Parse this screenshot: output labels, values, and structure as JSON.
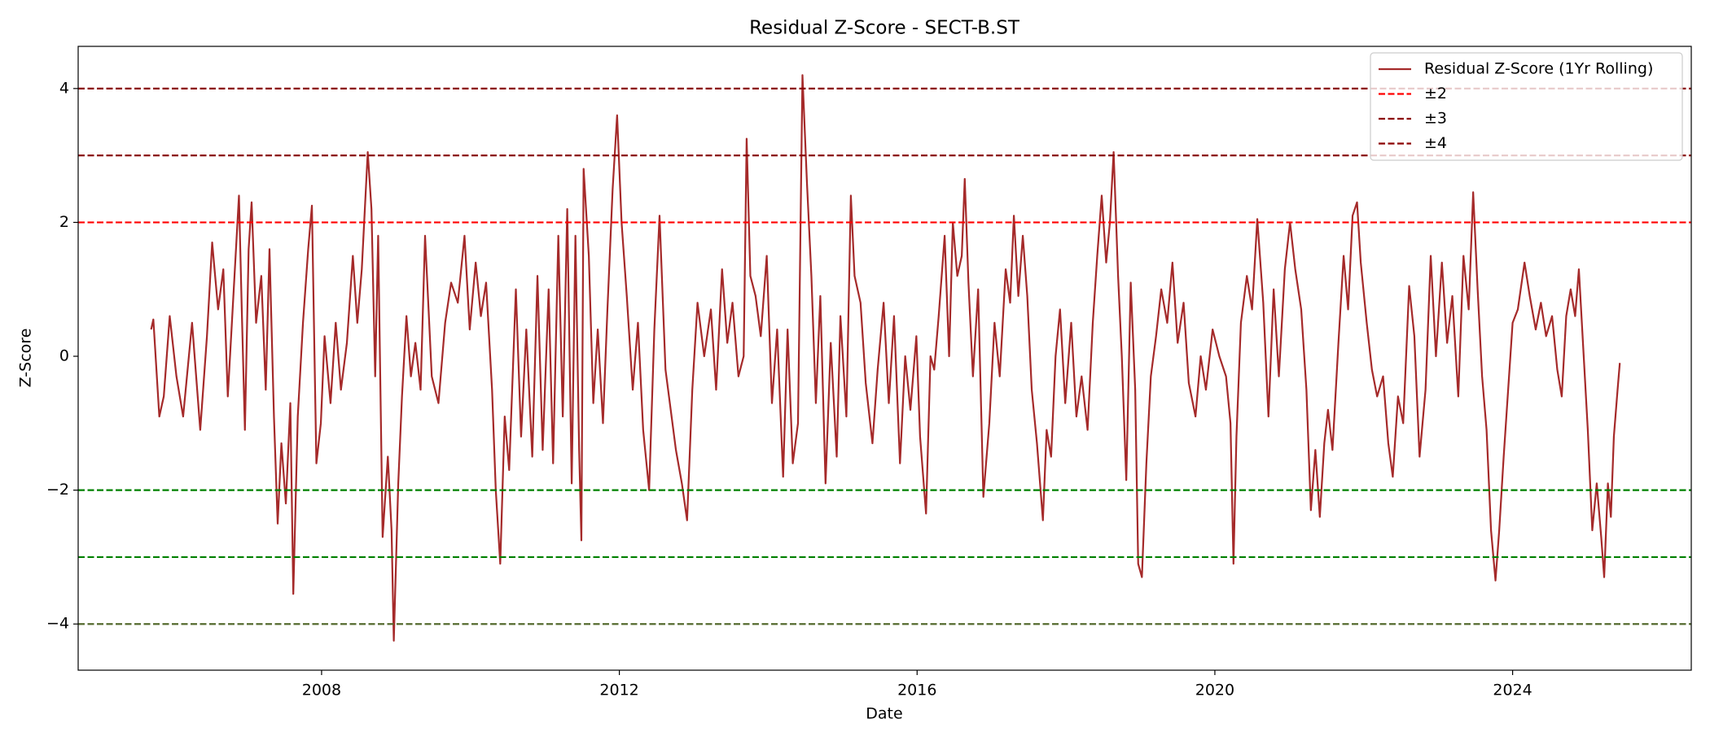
{
  "chart_data": {
    "type": "line",
    "title": "Residual Z-Score - SECT-B.ST",
    "x_label": "Date",
    "y_label": "Z-Score",
    "xlim": [
      2004.73,
      2026.4
    ],
    "xticks": [
      2008,
      2012,
      2016,
      2020,
      2024
    ],
    "ylim": [
      -4.69,
      4.63
    ],
    "yticks": [
      {
        "value": -4,
        "label": "−4"
      },
      {
        "value": -2,
        "label": "−2"
      },
      0,
      2,
      4
    ],
    "legend": "upper right",
    "series": [
      {
        "name": "Residual Z-Score (1Yr Rolling)",
        "color": "#a52a2a",
        "x": [
          2005.71,
          2005.74,
          2005.82,
          2005.88,
          2005.96,
          2006.05,
          2006.14,
          2006.26,
          2006.37,
          2006.46,
          2006.53,
          2006.61,
          2006.68,
          2006.74,
          2006.89,
          2006.93,
          2006.97,
          2007.02,
          2007.06,
          2007.12,
          2007.19,
          2007.25,
          2007.3,
          2007.36,
          2007.41,
          2007.46,
          2007.52,
          2007.58,
          2007.62,
          2007.68,
          2007.75,
          2007.82,
          2007.87,
          2007.93,
          2007.99,
          2008.04,
          2008.12,
          2008.19,
          2008.26,
          2008.34,
          2008.42,
          2008.48,
          2008.54,
          2008.62,
          2008.67,
          2008.72,
          2008.76,
          2008.82,
          2008.89,
          2008.94,
          2008.97,
          2009.03,
          2009.08,
          2009.14,
          2009.2,
          2009.26,
          2009.33,
          2009.39,
          2009.48,
          2009.57,
          2009.66,
          2009.74,
          2009.83,
          2009.92,
          2009.99,
          2010.07,
          2010.14,
          2010.21,
          2010.29,
          2010.34,
          2010.4,
          2010.46,
          2010.52,
          2010.61,
          2010.68,
          2010.75,
          2010.83,
          2010.9,
          2010.97,
          2011.05,
          2011.11,
          2011.18,
          2011.24,
          2011.3,
          2011.36,
          2011.41,
          2011.46,
          2011.49,
          2011.52,
          2011.59,
          2011.65,
          2011.71,
          2011.78,
          2011.84,
          2011.91,
          2011.97,
          2012.03,
          2012.1,
          2012.18,
          2012.25,
          2012.32,
          2012.4,
          2012.47,
          2012.54,
          2012.62,
          2012.69,
          2012.76,
          2012.84,
          2012.91,
          2012.98,
          2013.05,
          2013.14,
          2013.23,
          2013.3,
          2013.38,
          2013.45,
          2013.52,
          2013.6,
          2013.67,
          2013.71,
          2013.76,
          2013.83,
          2013.9,
          2013.98,
          2014.05,
          2014.12,
          2014.2,
          2014.26,
          2014.33,
          2014.4,
          2014.46,
          2014.52,
          2014.58,
          2014.64,
          2014.7,
          2014.77,
          2014.84,
          2014.92,
          2014.97,
          2015.05,
          2015.11,
          2015.16,
          2015.24,
          2015.31,
          2015.4,
          2015.47,
          2015.55,
          2015.62,
          2015.69,
          2015.77,
          2015.84,
          2015.91,
          2015.99,
          2016.04,
          2016.12,
          2016.18,
          2016.23,
          2016.29,
          2016.37,
          2016.43,
          2016.48,
          2016.54,
          2016.6,
          2016.64,
          2016.69,
          2016.75,
          2016.82,
          2016.89,
          2016.97,
          2017.04,
          2017.11,
          2017.19,
          2017.25,
          2017.3,
          2017.36,
          2017.42,
          2017.48,
          2017.54,
          2017.61,
          2017.69,
          2017.74,
          2017.8,
          2017.86,
          2017.92,
          2017.99,
          2018.07,
          2018.14,
          2018.21,
          2018.29,
          2018.36,
          2018.42,
          2018.48,
          2018.54,
          2018.59,
          2018.64,
          2018.7,
          2018.75,
          2018.81,
          2018.87,
          2018.93,
          2018.97,
          2019.02,
          2019.08,
          2019.14,
          2019.21,
          2019.28,
          2019.36,
          2019.43,
          2019.5,
          2019.58,
          2019.65,
          2019.74,
          2019.81,
          2019.88,
          2019.97,
          2020.06,
          2020.15,
          2020.21,
          2020.25,
          2020.29,
          2020.35,
          2020.43,
          2020.5,
          2020.57,
          2020.65,
          2020.72,
          2020.79,
          2020.86,
          2020.94,
          2021.01,
          2021.08,
          2021.16,
          2021.23,
          2021.29,
          2021.35,
          2021.41,
          2021.47,
          2021.52,
          2021.58,
          2021.66,
          2021.73,
          2021.79,
          2021.85,
          2021.91,
          2021.96,
          2022.04,
          2022.11,
          2022.18,
          2022.26,
          2022.33,
          2022.39,
          2022.46,
          2022.53,
          2022.61,
          2022.68,
          2022.75,
          2022.83,
          2022.9,
          2022.97,
          2023.05,
          2023.12,
          2023.19,
          2023.27,
          2023.34,
          2023.41,
          2023.47,
          2023.53,
          2023.59,
          2023.65,
          2023.71,
          2023.77,
          2023.82,
          2023.88,
          2023.94,
          2024.0,
          2024.07,
          2024.16,
          2024.23,
          2024.31,
          2024.38,
          2024.45,
          2024.53,
          2024.6,
          2024.66,
          2024.72,
          2024.78,
          2024.84,
          2024.89,
          2024.95,
          2025.01,
          2025.07,
          2025.13,
          2025.19,
          2025.23,
          2025.28,
          2025.32,
          2025.36,
          2025.41,
          2025.44
        ],
        "values": [
          0.4,
          0.55,
          -0.9,
          -0.6,
          0.6,
          -0.3,
          -0.9,
          0.5,
          -1.1,
          0.3,
          1.7,
          0.7,
          1.3,
          -0.6,
          2.4,
          0.6,
          -1.1,
          1.6,
          2.3,
          0.5,
          1.2,
          -0.5,
          1.6,
          -0.9,
          -2.5,
          -1.3,
          -2.2,
          -0.7,
          -3.55,
          -0.9,
          0.5,
          1.6,
          2.25,
          -1.6,
          -1.0,
          0.3,
          -0.7,
          0.5,
          -0.5,
          0.2,
          1.5,
          0.5,
          1.3,
          3.05,
          2.2,
          -0.3,
          1.8,
          -2.7,
          -1.5,
          -2.6,
          -4.25,
          -1.9,
          -0.6,
          0.6,
          -0.3,
          0.2,
          -0.5,
          1.8,
          -0.3,
          -0.7,
          0.5,
          1.1,
          0.8,
          1.8,
          0.4,
          1.4,
          0.6,
          1.1,
          -0.5,
          -2.0,
          -3.1,
          -0.9,
          -1.7,
          1.0,
          -1.2,
          0.4,
          -1.5,
          1.2,
          -1.4,
          1.0,
          -1.6,
          1.8,
          -0.9,
          2.2,
          -1.9,
          1.8,
          -1.4,
          -2.75,
          2.8,
          1.5,
          -0.7,
          0.4,
          -1.0,
          0.7,
          2.5,
          3.6,
          2.0,
          0.9,
          -0.5,
          0.5,
          -1.1,
          -2.0,
          0.4,
          2.1,
          -0.2,
          -0.8,
          -1.4,
          -1.9,
          -2.45,
          -0.5,
          0.8,
          0.0,
          0.7,
          -0.5,
          1.3,
          0.2,
          0.8,
          -0.3,
          0.0,
          3.25,
          1.2,
          0.9,
          0.3,
          1.5,
          -0.7,
          0.4,
          -1.8,
          0.4,
          -1.6,
          -1.0,
          4.2,
          2.6,
          1.2,
          -0.7,
          0.9,
          -1.9,
          0.2,
          -1.5,
          0.6,
          -0.9,
          2.4,
          1.2,
          0.8,
          -0.4,
          -1.3,
          -0.2,
          0.8,
          -0.7,
          0.6,
          -1.6,
          0.0,
          -0.8,
          0.3,
          -1.2,
          -2.35,
          0.0,
          -0.2,
          0.6,
          1.8,
          0.0,
          2.0,
          1.2,
          1.5,
          2.65,
          1.1,
          -0.3,
          1.0,
          -2.1,
          -1.0,
          0.5,
          -0.3,
          1.3,
          0.8,
          2.1,
          0.9,
          1.8,
          0.9,
          -0.5,
          -1.3,
          -2.45,
          -1.1,
          -1.5,
          0.0,
          0.7,
          -0.7,
          0.5,
          -0.9,
          -0.3,
          -1.1,
          0.5,
          1.5,
          2.4,
          1.4,
          2.0,
          3.05,
          1.2,
          0.0,
          -1.85,
          1.1,
          -0.5,
          -3.1,
          -3.3,
          -1.6,
          -0.3,
          0.3,
          1.0,
          0.5,
          1.4,
          0.2,
          0.8,
          -0.4,
          -0.9,
          0.0,
          -0.5,
          0.4,
          0.0,
          -0.3,
          -1.0,
          -3.1,
          -1.2,
          0.5,
          1.2,
          0.7,
          2.05,
          0.8,
          -0.9,
          1.0,
          -0.3,
          1.3,
          2.0,
          1.3,
          0.7,
          -0.5,
          -2.3,
          -1.4,
          -2.4,
          -1.3,
          -0.8,
          -1.4,
          0.2,
          1.5,
          0.7,
          2.1,
          2.3,
          1.4,
          0.5,
          -0.2,
          -0.6,
          -0.3,
          -1.3,
          -1.8,
          -0.6,
          -1.0,
          1.05,
          0.3,
          -1.5,
          -0.5,
          1.5,
          0.0,
          1.4,
          0.2,
          0.9,
          -0.6,
          1.5,
          0.7,
          2.45,
          1.0,
          -0.3,
          -1.1,
          -2.6,
          -3.35,
          -2.6,
          -1.5,
          -0.5,
          0.5,
          0.7,
          1.4,
          0.9,
          0.4,
          0.8,
          0.3,
          0.6,
          -0.2,
          -0.6,
          0.6,
          1.0,
          0.6,
          1.3,
          0.1,
          -1.1,
          -2.6,
          -1.9,
          -2.7,
          -3.3,
          -1.9,
          -2.4,
          -1.2,
          -0.5,
          -0.1
        ]
      }
    ],
    "reference_lines": [
      {
        "name": "±2",
        "color": "#ff0000",
        "lower_color": "#008000",
        "values": [
          2,
          -2
        ]
      },
      {
        "name": "±3",
        "color": "#8b0000",
        "lower_color": "#008000",
        "values": [
          3,
          -3
        ]
      },
      {
        "name": "±4",
        "color": "#8b0000",
        "lower_color": "#556b2f",
        "values": [
          4,
          -4
        ]
      }
    ]
  }
}
